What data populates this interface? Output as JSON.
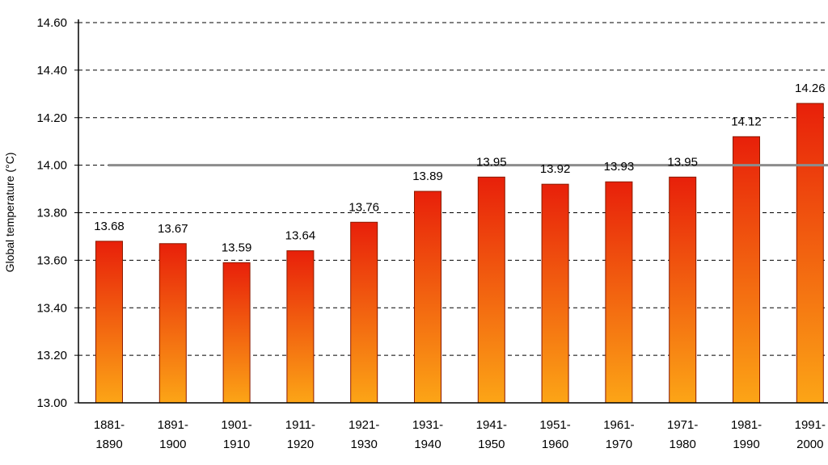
{
  "chart_data": {
    "type": "bar",
    "title": "",
    "xlabel": "",
    "ylabel": "Global temperature (°C)",
    "ylim": [
      13.0,
      14.6
    ],
    "yticks": [
      "13.00",
      "13.20",
      "13.40",
      "13.60",
      "13.80",
      "14.00",
      "14.20",
      "14.40",
      "14.60"
    ],
    "grid": true,
    "reference_line": 14.0,
    "categories": [
      [
        "1881-",
        "1890"
      ],
      [
        "1891-",
        "1900"
      ],
      [
        "1901-",
        "1910"
      ],
      [
        "1911-",
        "1920"
      ],
      [
        "1921-",
        "1930"
      ],
      [
        "1931-",
        "1940"
      ],
      [
        "1941-",
        "1950"
      ],
      [
        "1951-",
        "1960"
      ],
      [
        "1961-",
        "1970"
      ],
      [
        "1971-",
        "1980"
      ],
      [
        "1981-",
        "1990"
      ],
      [
        "1991-",
        "2000"
      ]
    ],
    "values": [
      13.68,
      13.67,
      13.59,
      13.64,
      13.76,
      13.89,
      13.95,
      13.92,
      13.93,
      13.95,
      14.12,
      14.26
    ],
    "value_labels": [
      "13.68",
      "13.67",
      "13.59",
      "13.64",
      "13.76",
      "13.89",
      "13.95",
      "13.92",
      "13.93",
      "13.95",
      "14.12",
      "14.26"
    ],
    "colors": {
      "bar_top": "#e8200a",
      "bar_bottom": "#fca516",
      "bar_outline": "#8a1a00",
      "reference_line": "#8c8c8c",
      "grid": "#000000"
    }
  }
}
